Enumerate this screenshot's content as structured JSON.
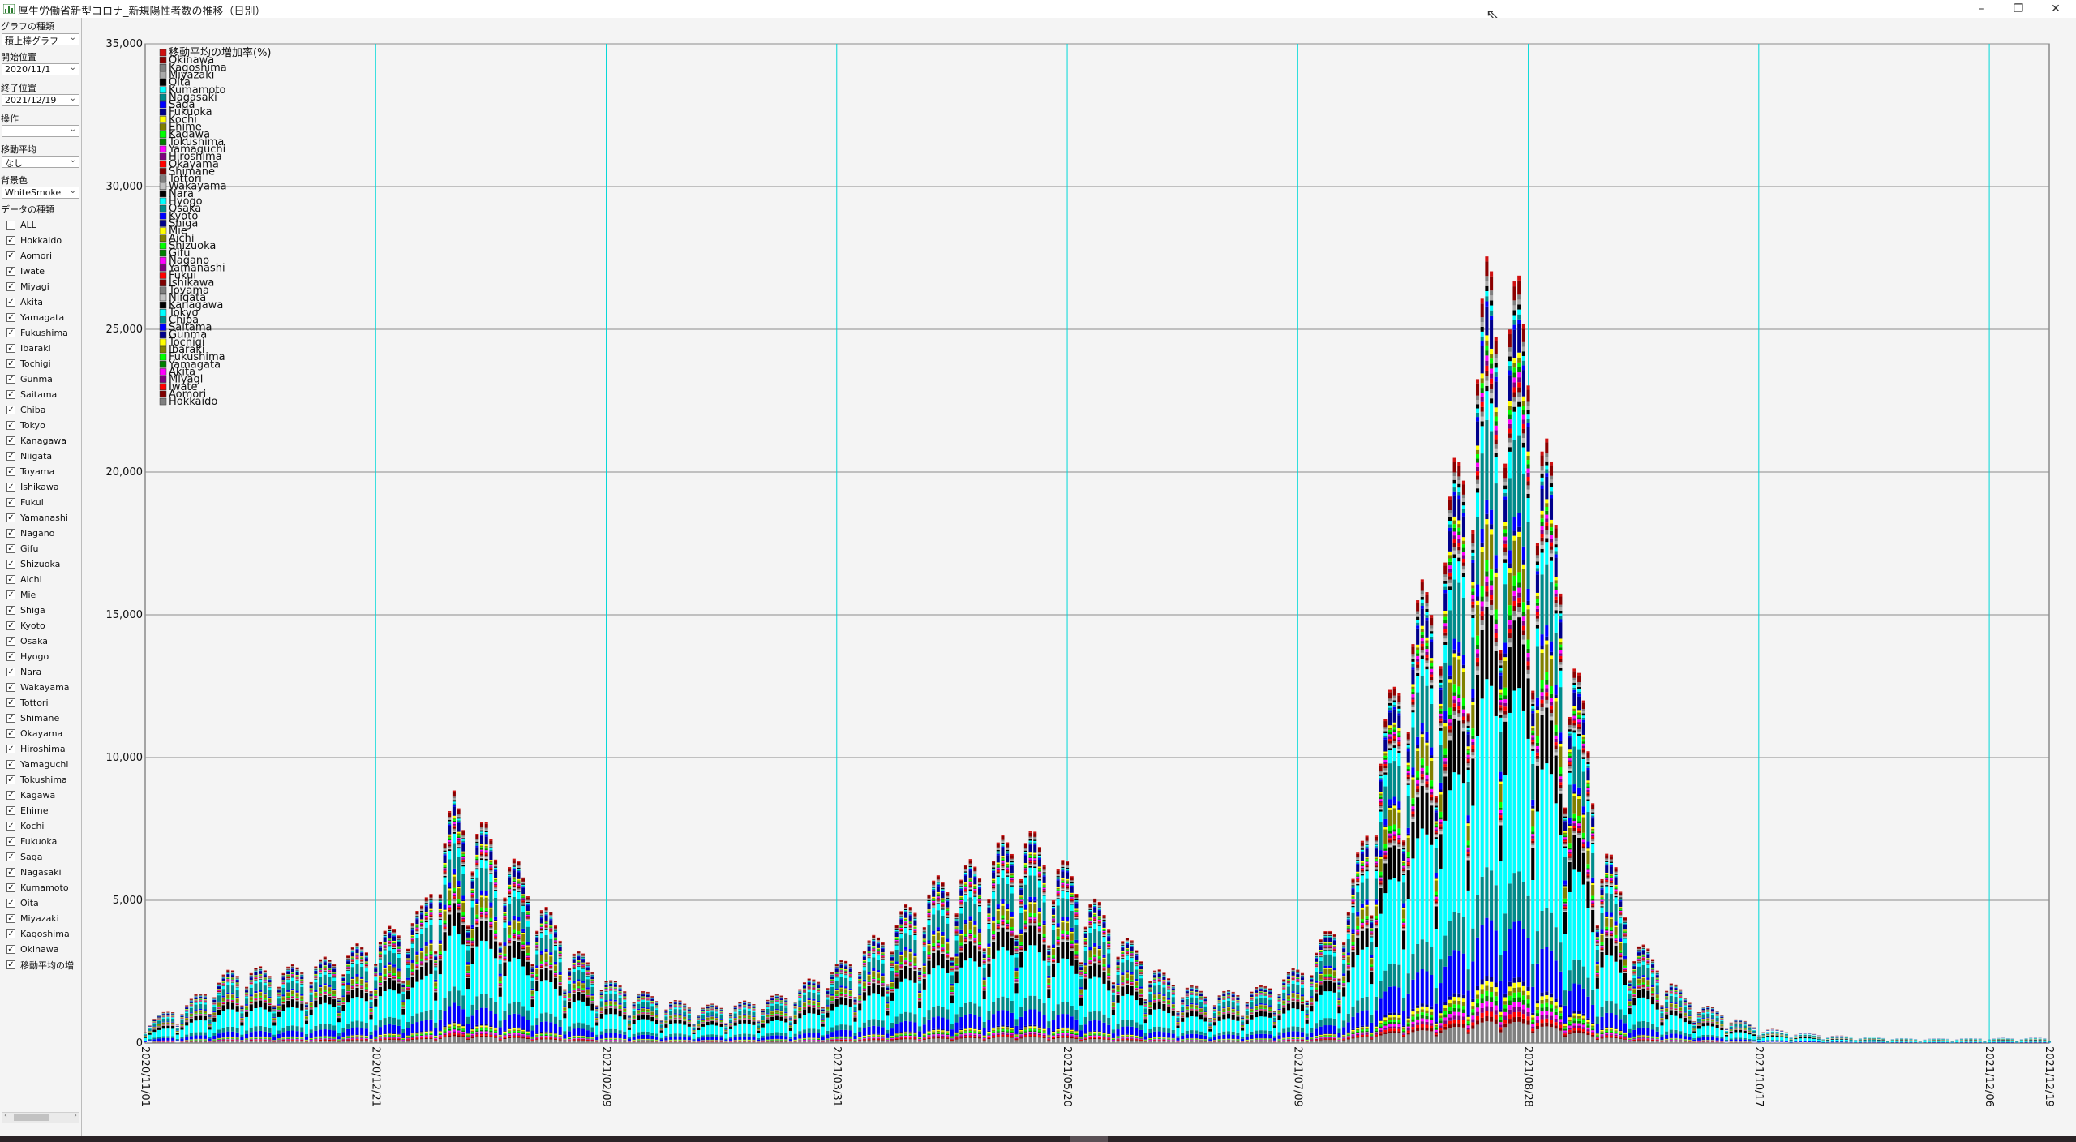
{
  "window": {
    "title": "厚生労働省新型コロナ_新規陽性者数の推移（日別）",
    "minimize": "–",
    "restore": "❐",
    "close": "✕"
  },
  "sidebar": {
    "graph_type_label": "グラフの種類",
    "graph_type_value": "積上棒グラフ",
    "start_label": "開始位置",
    "start_value": "2020/11/1",
    "end_label": "終了位置",
    "end_value": "2021/12/19",
    "op_label": "操作",
    "op_value": "",
    "ma_label": "移動平均",
    "ma_value": "なし",
    "bg_label": "背景色",
    "bg_value": "WhiteSmoke",
    "data_label": "データの種類",
    "series_checks": [
      {
        "label": "ALL",
        "checked": false
      },
      {
        "label": "Hokkaido",
        "checked": true
      },
      {
        "label": "Aomori",
        "checked": true
      },
      {
        "label": "Iwate",
        "checked": true
      },
      {
        "label": "Miyagi",
        "checked": true
      },
      {
        "label": "Akita",
        "checked": true
      },
      {
        "label": "Yamagata",
        "checked": true
      },
      {
        "label": "Fukushima",
        "checked": true
      },
      {
        "label": "Ibaraki",
        "checked": true
      },
      {
        "label": "Tochigi",
        "checked": true
      },
      {
        "label": "Gunma",
        "checked": true
      },
      {
        "label": "Saitama",
        "checked": true
      },
      {
        "label": "Chiba",
        "checked": true
      },
      {
        "label": "Tokyo",
        "checked": true
      },
      {
        "label": "Kanagawa",
        "checked": true
      },
      {
        "label": "Niigata",
        "checked": true
      },
      {
        "label": "Toyama",
        "checked": true
      },
      {
        "label": "Ishikawa",
        "checked": true
      },
      {
        "label": "Fukui",
        "checked": true
      },
      {
        "label": "Yamanashi",
        "checked": true
      },
      {
        "label": "Nagano",
        "checked": true
      },
      {
        "label": "Gifu",
        "checked": true
      },
      {
        "label": "Shizuoka",
        "checked": true
      },
      {
        "label": "Aichi",
        "checked": true
      },
      {
        "label": "Mie",
        "checked": true
      },
      {
        "label": "Shiga",
        "checked": true
      },
      {
        "label": "Kyoto",
        "checked": true
      },
      {
        "label": "Osaka",
        "checked": true
      },
      {
        "label": "Hyogo",
        "checked": true
      },
      {
        "label": "Nara",
        "checked": true
      },
      {
        "label": "Wakayama",
        "checked": true
      },
      {
        "label": "Tottori",
        "checked": true
      },
      {
        "label": "Shimane",
        "checked": true
      },
      {
        "label": "Okayama",
        "checked": true
      },
      {
        "label": "Hiroshima",
        "checked": true
      },
      {
        "label": "Yamaguchi",
        "checked": true
      },
      {
        "label": "Tokushima",
        "checked": true
      },
      {
        "label": "Kagawa",
        "checked": true
      },
      {
        "label": "Ehime",
        "checked": true
      },
      {
        "label": "Kochi",
        "checked": true
      },
      {
        "label": "Fukuoka",
        "checked": true
      },
      {
        "label": "Saga",
        "checked": true
      },
      {
        "label": "Nagasaki",
        "checked": true
      },
      {
        "label": "Kumamoto",
        "checked": true
      },
      {
        "label": "Oita",
        "checked": true
      },
      {
        "label": "Miyazaki",
        "checked": true
      },
      {
        "label": "Kagoshima",
        "checked": true
      },
      {
        "label": "Okinawa",
        "checked": true
      },
      {
        "label": "移動平均の増",
        "checked": true
      }
    ]
  },
  "chart_data": {
    "type": "bar",
    "stacked": true,
    "title": "",
    "xlabel": "",
    "ylabel": "",
    "background": "WhiteSmoke",
    "x_start": "2020/11/01",
    "x_end": "2021/12/19",
    "x_ticks": [
      "2020/11/01",
      "2020/12/21",
      "2021/02/09",
      "2021/03/31",
      "2021/05/20",
      "2021/07/09",
      "2021/08/28",
      "2021/10/17",
      "2021/12/06",
      "2021/12/19"
    ],
    "y_ticks": [
      "0",
      "5,000",
      "10,000",
      "15,000",
      "20,000",
      "25,000",
      "30,000",
      "35,000"
    ],
    "ylim": [
      0,
      35000
    ],
    "grid": true,
    "legend_position": "top-left",
    "legend": [
      {
        "name": "移動平均の増加率(%)",
        "color": "#d01010"
      },
      {
        "name": "Okinawa",
        "color": "#8b0000"
      },
      {
        "name": "Kagoshima",
        "color": "#808080"
      },
      {
        "name": "Miyazaki",
        "color": "#a9a9a9"
      },
      {
        "name": "Oita",
        "color": "#000000"
      },
      {
        "name": "Kumamoto",
        "color": "#00ffff"
      },
      {
        "name": "Nagasaki",
        "color": "#008b8b"
      },
      {
        "name": "Saga",
        "color": "#0000ff"
      },
      {
        "name": "Fukuoka",
        "color": "#00008b"
      },
      {
        "name": "Kochi",
        "color": "#ffff00"
      },
      {
        "name": "Ehime",
        "color": "#808000"
      },
      {
        "name": "Kagawa",
        "color": "#00ff00"
      },
      {
        "name": "Tokushima",
        "color": "#008000"
      },
      {
        "name": "Yamaguchi",
        "color": "#ff00ff"
      },
      {
        "name": "Hiroshima",
        "color": "#800080"
      },
      {
        "name": "Okayama",
        "color": "#ff0000"
      },
      {
        "name": "Shimane",
        "color": "#800000"
      },
      {
        "name": "Tottori",
        "color": "#808080"
      },
      {
        "name": "Wakayama",
        "color": "#c0c0c0"
      },
      {
        "name": "Nara",
        "color": "#000000"
      },
      {
        "name": "Hyogo",
        "color": "#00ffff"
      },
      {
        "name": "Osaka",
        "color": "#008b8b"
      },
      {
        "name": "Kyoto",
        "color": "#0000ff"
      },
      {
        "name": "Shiga",
        "color": "#00008b"
      },
      {
        "name": "Mie",
        "color": "#ffff00"
      },
      {
        "name": "Aichi",
        "color": "#808000"
      },
      {
        "name": "Shizuoka",
        "color": "#00ff00"
      },
      {
        "name": "Gifu",
        "color": "#008000"
      },
      {
        "name": "Nagano",
        "color": "#ff00ff"
      },
      {
        "name": "Yamanashi",
        "color": "#800080"
      },
      {
        "name": "Fukui",
        "color": "#ff0000"
      },
      {
        "name": "Ishikawa",
        "color": "#800000"
      },
      {
        "name": "Toyama",
        "color": "#808080"
      },
      {
        "name": "Niigata",
        "color": "#c0c0c0"
      },
      {
        "name": "Kanagawa",
        "color": "#000000"
      },
      {
        "name": "Tokyo",
        "color": "#00ffff"
      },
      {
        "name": "Chiba",
        "color": "#008b8b"
      },
      {
        "name": "Saitama",
        "color": "#0000ff"
      },
      {
        "name": "Gunma",
        "color": "#00008b"
      },
      {
        "name": "Tochigi",
        "color": "#ffff00"
      },
      {
        "name": "Ibaraki",
        "color": "#808000"
      },
      {
        "name": "Fukushima",
        "color": "#00ff00"
      },
      {
        "name": "Yamagata",
        "color": "#008000"
      },
      {
        "name": "Akita",
        "color": "#ff00ff"
      },
      {
        "name": "Miyagi",
        "color": "#800080"
      },
      {
        "name": "Iwate",
        "color": "#ff0000"
      },
      {
        "name": "Aomori",
        "color": "#800000"
      },
      {
        "name": "Hokkaido",
        "color": "#808080"
      }
    ],
    "total_profile": [
      [
        "2020/11/01",
        700
      ],
      [
        "2020/11/10",
        1300
      ],
      [
        "2020/11/20",
        2400
      ],
      [
        "2020/12/01",
        2400
      ],
      [
        "2020/12/10",
        2700
      ],
      [
        "2020/12/20",
        3300
      ],
      [
        "2020/12/31",
        4300
      ],
      [
        "2021/01/07",
        7900
      ],
      [
        "2021/01/14",
        6900
      ],
      [
        "2021/01/21",
        5700
      ],
      [
        "2021/02/01",
        3200
      ],
      [
        "2021/02/10",
        2000
      ],
      [
        "2021/02/20",
        1500
      ],
      [
        "2021/03/01",
        1200
      ],
      [
        "2021/03/10",
        1300
      ],
      [
        "2021/03/20",
        1600
      ],
      [
        "2021/04/01",
        2600
      ],
      [
        "2021/04/10",
        3600
      ],
      [
        "2021/04/20",
        5100
      ],
      [
        "2021/05/01",
        5900
      ],
      [
        "2021/05/10",
        7000
      ],
      [
        "2021/05/20",
        5700
      ],
      [
        "2021/06/01",
        3500
      ],
      [
        "2021/06/10",
        2200
      ],
      [
        "2021/06/20",
        1600
      ],
      [
        "2021/07/01",
        1800
      ],
      [
        "2021/07/10",
        2500
      ],
      [
        "2021/07/20",
        4500
      ],
      [
        "2021/07/31",
        12500
      ],
      [
        "2021/08/10",
        16500
      ],
      [
        "2021/08/20",
        25500
      ],
      [
        "2021/08/28",
        23500
      ],
      [
        "2021/09/05",
        15000
      ],
      [
        "2021/09/12",
        7500
      ],
      [
        "2021/09/20",
        3500
      ],
      [
        "2021/10/01",
        1500
      ],
      [
        "2021/10/17",
        500
      ],
      [
        "2021/11/01",
        250
      ],
      [
        "2021/11/20",
        150
      ],
      [
        "2021/12/19",
        180
      ]
    ],
    "peak_value": 26000,
    "peak_date": "2021/08/20"
  }
}
